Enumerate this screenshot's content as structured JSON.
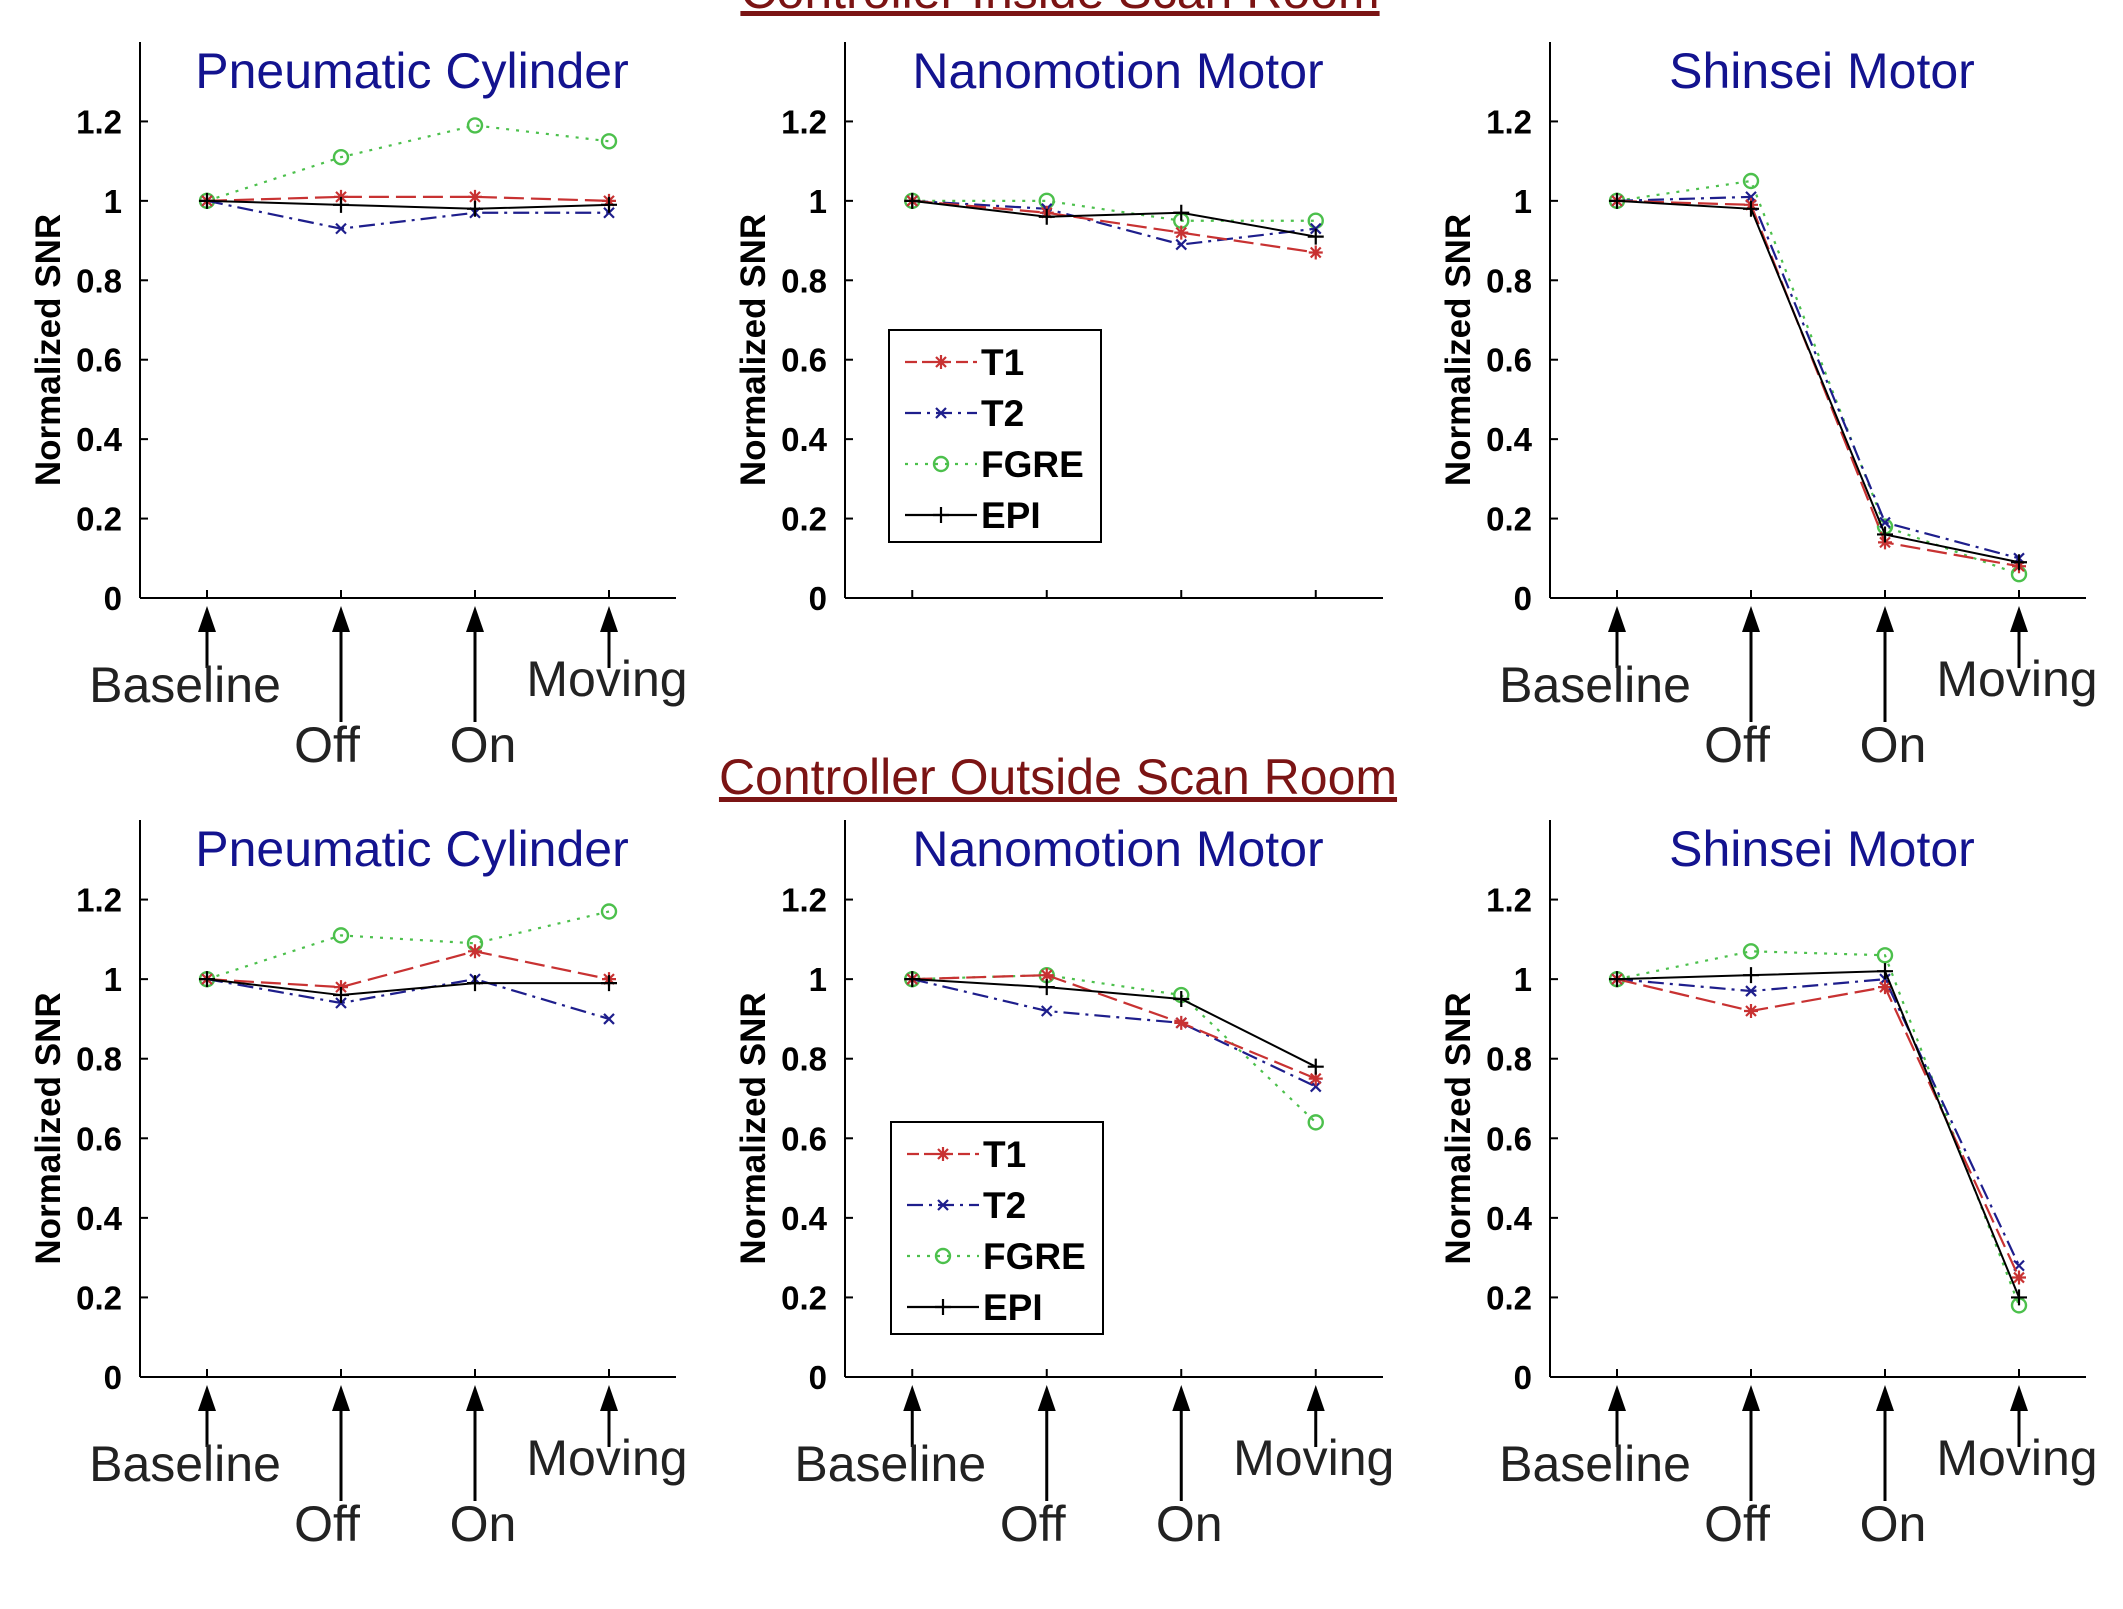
{
  "headers": {
    "inside": "Controller Inside Scan Room",
    "outside": "Controller Outside Scan Room"
  },
  "y_axis_label": "Normalized SNR",
  "y_ticks": [
    "0",
    "0.2",
    "0.4",
    "0.6",
    "0.8",
    "1",
    "1.2"
  ],
  "arrow_labels": [
    "Baseline",
    "Off",
    "On",
    "Moving"
  ],
  "legend": [
    "T1",
    "T2",
    "FGRE",
    "EPI"
  ],
  "colors": {
    "T1": "#c83232",
    "T2": "#1e1e8c",
    "FGRE": "#4cc04c",
    "EPI": "#000000",
    "header": "#7b1414",
    "panel_title": "#13138f"
  },
  "chart_data": [
    {
      "type": "line",
      "group": "Controller Inside Scan Room",
      "title": "Pneumatic Cylinder",
      "ylabel": "Normalized SNR",
      "ylim": [
        0,
        1.4
      ],
      "categories": [
        "Baseline",
        "Off",
        "On",
        "Moving"
      ],
      "series": [
        {
          "name": "T1",
          "values": [
            1.0,
            1.01,
            1.01,
            1.0
          ]
        },
        {
          "name": "T2",
          "values": [
            1.0,
            0.93,
            0.97,
            0.97
          ]
        },
        {
          "name": "FGRE",
          "values": [
            1.0,
            1.11,
            1.19,
            1.15
          ]
        },
        {
          "name": "EPI",
          "values": [
            1.0,
            0.99,
            0.98,
            0.99
          ]
        }
      ]
    },
    {
      "type": "line",
      "group": "Controller Inside Scan Room",
      "title": "Nanomotion Motor",
      "ylabel": "Normalized SNR",
      "ylim": [
        0,
        1.4
      ],
      "categories": [
        "",
        "",
        "",
        ""
      ],
      "legend": "lower-left",
      "series": [
        {
          "name": "T1",
          "values": [
            1.0,
            0.97,
            0.92,
            0.87
          ]
        },
        {
          "name": "T2",
          "values": [
            1.0,
            0.98,
            0.89,
            0.93
          ]
        },
        {
          "name": "FGRE",
          "values": [
            1.0,
            1.0,
            0.95,
            0.95
          ]
        },
        {
          "name": "EPI",
          "values": [
            1.0,
            0.96,
            0.97,
            0.91
          ]
        }
      ]
    },
    {
      "type": "line",
      "group": "Controller Inside Scan Room",
      "title": "Shinsei Motor",
      "ylabel": "Normalized SNR",
      "ylim": [
        0,
        1.4
      ],
      "categories": [
        "Baseline",
        "Off",
        "On",
        "Moving"
      ],
      "series": [
        {
          "name": "T1",
          "values": [
            1.0,
            0.99,
            0.14,
            0.08
          ]
        },
        {
          "name": "T2",
          "values": [
            1.0,
            1.01,
            0.19,
            0.1
          ]
        },
        {
          "name": "FGRE",
          "values": [
            1.0,
            1.05,
            0.18,
            0.06
          ]
        },
        {
          "name": "EPI",
          "values": [
            1.0,
            0.98,
            0.16,
            0.09
          ]
        }
      ]
    },
    {
      "type": "line",
      "group": "Controller Outside Scan Room",
      "title": "Pneumatic Cylinder",
      "ylabel": "Normalized SNR",
      "ylim": [
        0,
        1.4
      ],
      "categories": [
        "Baseline",
        "Off",
        "On",
        "Moving"
      ],
      "series": [
        {
          "name": "T1",
          "values": [
            1.0,
            0.98,
            1.07,
            1.0
          ]
        },
        {
          "name": "T2",
          "values": [
            1.0,
            0.94,
            1.0,
            0.9
          ]
        },
        {
          "name": "FGRE",
          "values": [
            1.0,
            1.11,
            1.09,
            1.17
          ]
        },
        {
          "name": "EPI",
          "values": [
            1.0,
            0.96,
            0.99,
            0.99
          ]
        }
      ]
    },
    {
      "type": "line",
      "group": "Controller Outside Scan Room",
      "title": "Nanomotion Motor",
      "ylabel": "Normalized SNR",
      "ylim": [
        0,
        1.4
      ],
      "categories": [
        "Baseline",
        "Off",
        "On",
        "Moving"
      ],
      "legend": "lower-left",
      "series": [
        {
          "name": "T1",
          "values": [
            1.0,
            1.01,
            0.89,
            0.75
          ]
        },
        {
          "name": "T2",
          "values": [
            1.0,
            0.92,
            0.89,
            0.73
          ]
        },
        {
          "name": "FGRE",
          "values": [
            1.0,
            1.01,
            0.96,
            0.64
          ]
        },
        {
          "name": "EPI",
          "values": [
            1.0,
            0.98,
            0.95,
            0.78
          ]
        }
      ]
    },
    {
      "type": "line",
      "group": "Controller Outside Scan Room",
      "title": "Shinsei Motor",
      "ylabel": "Normalized SNR",
      "ylim": [
        0,
        1.4
      ],
      "categories": [
        "Baseline",
        "Off",
        "On",
        "Moving"
      ],
      "series": [
        {
          "name": "T1",
          "values": [
            1.0,
            0.92,
            0.98,
            0.25
          ]
        },
        {
          "name": "T2",
          "values": [
            1.0,
            0.97,
            1.0,
            0.28
          ]
        },
        {
          "name": "FGRE",
          "values": [
            1.0,
            1.07,
            1.06,
            0.18
          ]
        },
        {
          "name": "EPI",
          "values": [
            1.0,
            1.01,
            1.02,
            0.2
          ]
        }
      ]
    }
  ]
}
